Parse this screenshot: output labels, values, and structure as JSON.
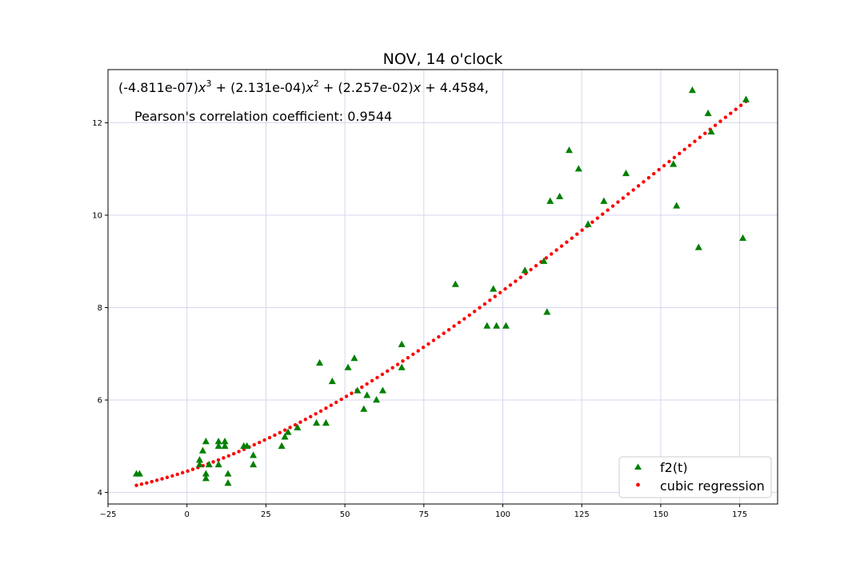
{
  "chart_data": {
    "type": "scatter",
    "title": "NOV, 14 o'clock",
    "xlabel": "",
    "ylabel": "",
    "xlim": [
      -25,
      187
    ],
    "ylim": [
      3.75,
      13.15
    ],
    "grid": true,
    "legend_position": "bottom-right",
    "x_ticks": [
      -25,
      0,
      25,
      50,
      75,
      100,
      125,
      150,
      175
    ],
    "x_tick_labels": [
      "−25",
      "0",
      "25",
      "50",
      "75",
      "100",
      "125",
      "150",
      "175"
    ],
    "y_ticks": [
      4,
      6,
      8,
      10,
      12
    ],
    "y_tick_labels": [
      "4",
      "6",
      "8",
      "10",
      "12"
    ],
    "annotation": {
      "equation_parts": [
        "(-4.811e-07)",
        "x",
        "3",
        " + (2.131e-04)",
        "x",
        "2",
        " + (2.257e-02)",
        "x",
        " + 4.4584,"
      ],
      "pearson": "Pearson's correlation coefficient: 0.9544"
    },
    "regression": {
      "coefficients": [
        -4.811e-07,
        0.0002131,
        0.02257,
        4.4584
      ],
      "x_start": -16,
      "x_end": 177,
      "num_points": 120
    },
    "series": [
      {
        "name": "f2(t)",
        "marker": "triangle",
        "color": "#008000",
        "points": [
          [
            -16,
            4.4
          ],
          [
            -15,
            4.4
          ],
          [
            4,
            4.7
          ],
          [
            4,
            4.6
          ],
          [
            5,
            4.9
          ],
          [
            6,
            5.1
          ],
          [
            6,
            4.4
          ],
          [
            6,
            4.3
          ],
          [
            7,
            4.6
          ],
          [
            10,
            5.1
          ],
          [
            10,
            5.0
          ],
          [
            10,
            4.6
          ],
          [
            12,
            5.1
          ],
          [
            12,
            5.0
          ],
          [
            13,
            4.4
          ],
          [
            13,
            4.2
          ],
          [
            18,
            5.0
          ],
          [
            19,
            5.0
          ],
          [
            21,
            4.8
          ],
          [
            21,
            4.6
          ],
          [
            30,
            5.0
          ],
          [
            31,
            5.2
          ],
          [
            32,
            5.3
          ],
          [
            35,
            5.4
          ],
          [
            41,
            5.5
          ],
          [
            42,
            6.8
          ],
          [
            44,
            5.5
          ],
          [
            46,
            6.4
          ],
          [
            51,
            6.7
          ],
          [
            53,
            6.9
          ],
          [
            54,
            6.2
          ],
          [
            56,
            5.8
          ],
          [
            57,
            6.1
          ],
          [
            60,
            6.0
          ],
          [
            62,
            6.2
          ],
          [
            68,
            7.2
          ],
          [
            68,
            6.7
          ],
          [
            85,
            8.5
          ],
          [
            95,
            7.6
          ],
          [
            97,
            8.4
          ],
          [
            98,
            7.6
          ],
          [
            101,
            7.6
          ],
          [
            107,
            8.8
          ],
          [
            113,
            9.0
          ],
          [
            114,
            7.9
          ],
          [
            115,
            10.3
          ],
          [
            118,
            10.4
          ],
          [
            121,
            11.4
          ],
          [
            124,
            11.0
          ],
          [
            127,
            9.8
          ],
          [
            132,
            10.3
          ],
          [
            139,
            10.9
          ],
          [
            154,
            11.1
          ],
          [
            155,
            10.2
          ],
          [
            160,
            12.7
          ],
          [
            162,
            9.3
          ],
          [
            165,
            12.2
          ],
          [
            166,
            11.8
          ],
          [
            176,
            9.5
          ],
          [
            177,
            12.5
          ]
        ]
      },
      {
        "name": "cubic regression",
        "marker": "dot",
        "color": "#ff0000"
      }
    ]
  }
}
